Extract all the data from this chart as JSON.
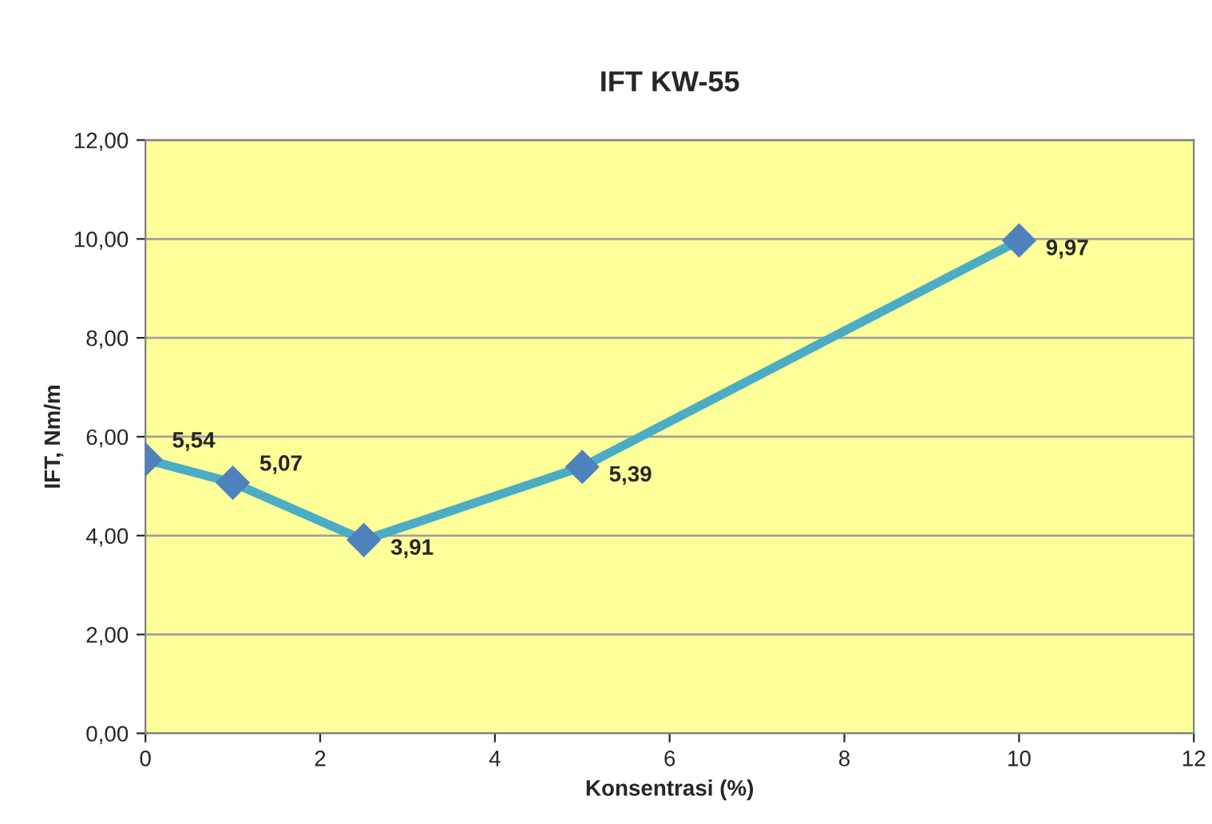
{
  "chart_data": {
    "type": "line",
    "title": "IFT KW-55",
    "xlabel": "Konsentrasi (%)",
    "ylabel": "IFT, Nm/m",
    "x": [
      0,
      1,
      2.5,
      5,
      10
    ],
    "series": [
      {
        "color": "#4bacc6",
        "values": [
          5.54,
          5.07,
          3.91,
          5.39,
          9.97
        ],
        "value_labels": [
          "5,54",
          "5,07",
          "3,91",
          "5,39",
          "9,97"
        ]
      }
    ],
    "marker": "diamond",
    "line_style": "solid",
    "grid": "y",
    "xlim": [
      0,
      12
    ],
    "xticks": [
      0,
      2,
      4,
      6,
      8,
      10,
      12
    ],
    "ylim": [
      0,
      12
    ],
    "yticks": [
      {
        "value": 0,
        "label": "0,00"
      },
      {
        "value": 2,
        "label": "2,00"
      },
      {
        "value": 4,
        "label": "4,00"
      },
      {
        "value": 6,
        "label": "6,00"
      },
      {
        "value": 8,
        "label": "8,00"
      },
      {
        "value": 10,
        "label": "10,00"
      },
      {
        "value": 12,
        "label": "12,00"
      }
    ]
  }
}
